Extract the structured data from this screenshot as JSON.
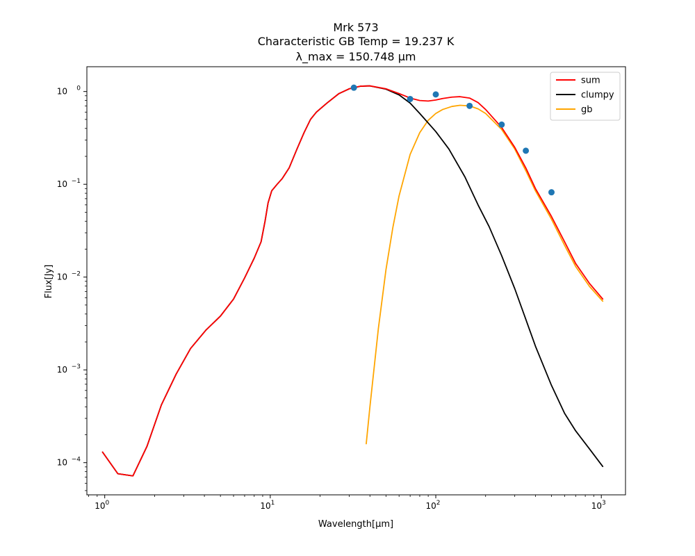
{
  "chart_data": {
    "type": "line",
    "title_lines": [
      "Mrk 573",
      "Characteristic GB Temp = 19.237 K",
      "λ_max = 150.748 μm"
    ],
    "xlabel": "Wavelength[μm]",
    "ylabel": "Flux[Jy]",
    "xscale": "log",
    "yscale": "log",
    "xlim": [
      0.78,
      1400
    ],
    "ylim": [
      4.5e-05,
      1.85
    ],
    "x_ticks": [
      {
        "value": 1,
        "base": "10",
        "exp": "0"
      },
      {
        "value": 10,
        "base": "10",
        "exp": "1"
      },
      {
        "value": 100,
        "base": "10",
        "exp": "2"
      },
      {
        "value": 1000,
        "base": "10",
        "exp": "3"
      }
    ],
    "y_ticks": [
      {
        "value": 0.0001,
        "base": "10",
        "exp": "−4"
      },
      {
        "value": 0.001,
        "base": "10",
        "exp": "−3"
      },
      {
        "value": 0.01,
        "base": "10",
        "exp": "−2"
      },
      {
        "value": 0.1,
        "base": "10",
        "exp": "−1"
      },
      {
        "value": 1,
        "base": "10",
        "exp": "0"
      }
    ],
    "grid": false,
    "legend_position": "top-right",
    "series": [
      {
        "name": "sum",
        "color": "#ff0000",
        "x": [
          0.97,
          1.2,
          1.48,
          1.8,
          2.2,
          2.7,
          3.3,
          4.1,
          5.0,
          6.0,
          7.0,
          8.0,
          8.8,
          9.3,
          9.7,
          10.2,
          11.0,
          11.8,
          13.0,
          14.5,
          16.0,
          17.5,
          19.0,
          22.0,
          26.0,
          30.0,
          35.0,
          40.0,
          50.0,
          60.0,
          70.0,
          80.0,
          90.0,
          100.0,
          110.0,
          125.0,
          140.0,
          160.0,
          180.0,
          200.0,
          250.0,
          300.0,
          350.0,
          400.0,
          500.0,
          600.0,
          700.0,
          850.0,
          1020.0
        ],
        "y": [
          0.00013,
          7.6e-05,
          7.2e-05,
          0.00015,
          0.00042,
          0.0009,
          0.0017,
          0.0027,
          0.0038,
          0.0058,
          0.0098,
          0.016,
          0.024,
          0.04,
          0.063,
          0.085,
          0.1,
          0.115,
          0.15,
          0.24,
          0.36,
          0.5,
          0.6,
          0.75,
          0.95,
          1.07,
          1.14,
          1.15,
          1.07,
          0.95,
          0.85,
          0.8,
          0.79,
          0.81,
          0.84,
          0.87,
          0.88,
          0.85,
          0.76,
          0.64,
          0.41,
          0.25,
          0.15,
          0.09,
          0.045,
          0.024,
          0.014,
          0.0085,
          0.0058
        ]
      },
      {
        "name": "clumpy",
        "color": "#000000",
        "x": [
          0.97,
          1.2,
          1.48,
          1.8,
          2.2,
          2.7,
          3.3,
          4.1,
          5.0,
          6.0,
          7.0,
          8.0,
          8.8,
          9.3,
          9.7,
          10.2,
          11.0,
          11.8,
          13.0,
          14.5,
          16.0,
          17.5,
          19.0,
          22.0,
          26.0,
          30.0,
          35.0,
          40.0,
          50.0,
          60.0,
          70.0,
          80.0,
          100.0,
          120.0,
          150.0,
          180.0,
          210.0,
          250.0,
          300.0,
          350.0,
          400.0,
          500.0,
          600.0,
          700.0,
          850.0,
          1020.0
        ],
        "y": [
          0.00013,
          7.6e-05,
          7.2e-05,
          0.00015,
          0.00042,
          0.0009,
          0.0017,
          0.0027,
          0.0038,
          0.0058,
          0.0098,
          0.016,
          0.024,
          0.04,
          0.063,
          0.085,
          0.1,
          0.115,
          0.15,
          0.24,
          0.36,
          0.5,
          0.6,
          0.75,
          0.95,
          1.07,
          1.14,
          1.15,
          1.06,
          0.92,
          0.75,
          0.58,
          0.37,
          0.24,
          0.12,
          0.06,
          0.035,
          0.017,
          0.0075,
          0.0035,
          0.0018,
          0.00068,
          0.00034,
          0.00022,
          0.00014,
          9.1e-05
        ]
      },
      {
        "name": "gb",
        "color": "#ffa500",
        "x": [
          38.0,
          40.0,
          45.0,
          50.0,
          55.0,
          60.0,
          70.0,
          80.0,
          90.0,
          100.0,
          110.0,
          125.0,
          140.0,
          160.0,
          180.0,
          200.0,
          250.0,
          300.0,
          350.0,
          400.0,
          500.0,
          600.0,
          700.0,
          850.0,
          1020.0
        ],
        "y": [
          0.00016,
          0.0004,
          0.0028,
          0.012,
          0.034,
          0.075,
          0.21,
          0.36,
          0.49,
          0.58,
          0.64,
          0.69,
          0.71,
          0.7,
          0.65,
          0.58,
          0.39,
          0.24,
          0.14,
          0.085,
          0.042,
          0.022,
          0.013,
          0.0079,
          0.0055
        ]
      }
    ],
    "observations": {
      "color": "#1f77b4",
      "x": [
        32.0,
        70.0,
        100.0,
        160.0,
        250.0,
        350.0,
        500.0
      ],
      "y": [
        1.1,
        0.83,
        0.93,
        0.7,
        0.44,
        0.23,
        0.082
      ]
    }
  }
}
